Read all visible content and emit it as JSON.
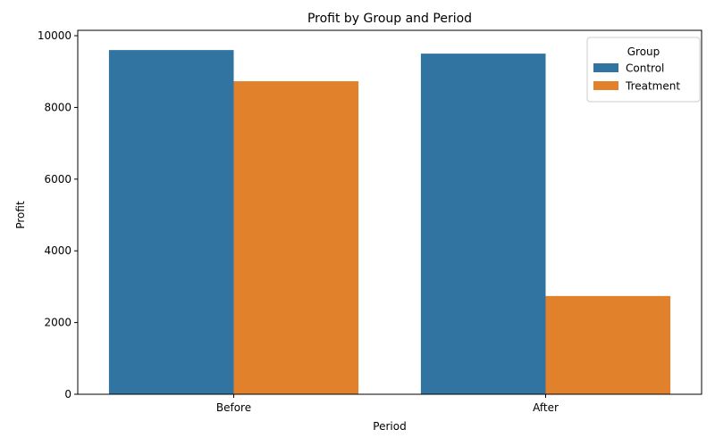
{
  "chart_data": {
    "type": "bar",
    "title": "Profit by Group and Period",
    "xlabel": "Period",
    "ylabel": "Profit",
    "categories": [
      "Before",
      "After"
    ],
    "series": [
      {
        "name": "Control",
        "values": [
          9600,
          9500
        ],
        "color": "#3274a1"
      },
      {
        "name": "Treatment",
        "values": [
          8730,
          2740
        ],
        "color": "#e1812c"
      }
    ],
    "ylim": [
      0,
      10150
    ],
    "yticks": [
      0,
      2000,
      4000,
      6000,
      8000,
      10000
    ],
    "legend": {
      "title": "Group",
      "placement": "top-right"
    },
    "grid": false
  }
}
